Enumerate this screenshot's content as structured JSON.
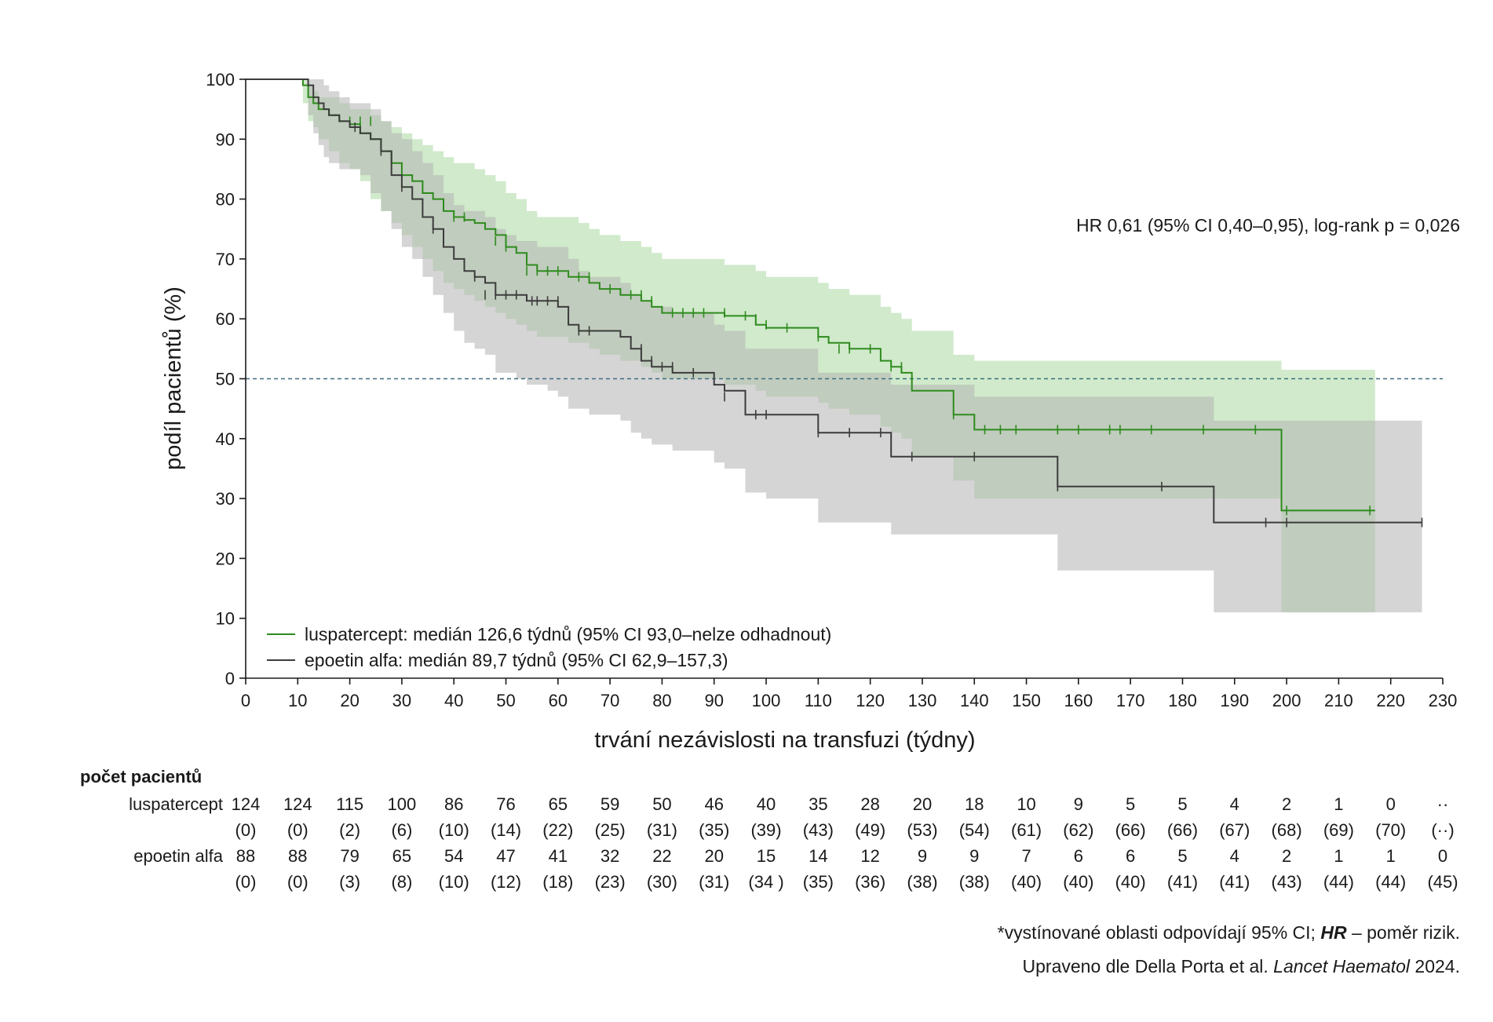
{
  "chart_data": {
    "type": "line",
    "subtype": "kaplan-meier",
    "xlabel": "trvání nezávislosti na transfuzi (týdny)",
    "ylabel": "podíl pacientů (%)",
    "xlim": [
      0,
      230
    ],
    "ylim": [
      0,
      100
    ],
    "x_ticks": [
      0,
      10,
      20,
      30,
      40,
      50,
      60,
      70,
      80,
      90,
      100,
      110,
      120,
      130,
      140,
      150,
      160,
      170,
      180,
      190,
      200,
      210,
      220,
      230
    ],
    "y_ticks": [
      0,
      10,
      20,
      30,
      40,
      50,
      60,
      70,
      80,
      90,
      100
    ],
    "reference_line": {
      "y": 50,
      "style": "dashed",
      "color": "#3d6e7e"
    },
    "hr_annotation": "HR 0,61 (95% CI 0,40–0,95), log-rank p = 0,026",
    "grid": false,
    "series": [
      {
        "name": "luspatercept",
        "legend": "luspatercept: medián 126,6 týdnů (95% CI 93,0–nelze odhadnout)",
        "color": "#2e8b1e",
        "ci_color": "#c8e6c2",
        "x": [
          0,
          11,
          12,
          13,
          14,
          16,
          18,
          20,
          22,
          24,
          26,
          28,
          30,
          32,
          34,
          36,
          38,
          40,
          42,
          44,
          46,
          48,
          50,
          52,
          54,
          56,
          58,
          60,
          62,
          64,
          66,
          68,
          72,
          76,
          78,
          80,
          86,
          90,
          92,
          96,
          98,
          100,
          104,
          110,
          112,
          116,
          122,
          124,
          126,
          128,
          136,
          140,
          146,
          156,
          166,
          186,
          199,
          217
        ],
        "y": [
          100,
          99,
          97,
          96,
          95,
          94,
          93,
          92.5,
          91,
          90,
          88,
          86,
          84,
          83,
          81,
          80,
          78,
          77,
          76.5,
          76,
          75,
          74,
          72,
          71,
          69,
          68,
          68,
          68,
          67,
          67,
          66,
          65,
          64,
          63,
          62,
          61,
          61,
          61,
          60.5,
          60.5,
          59,
          58.5,
          58.5,
          57,
          56,
          55,
          53,
          52,
          51,
          48,
          44,
          41.5,
          41.5,
          41.5,
          41.5,
          41.5,
          28,
          28
        ],
        "ci_lower": [
          100,
          96,
          93,
          92,
          90,
          88,
          86,
          85,
          83,
          80,
          78,
          76,
          74,
          72,
          70,
          68,
          66,
          65,
          64,
          63,
          62,
          61,
          60,
          59,
          58,
          57,
          57,
          57,
          56,
          56,
          55,
          54,
          53,
          52,
          51,
          50,
          50,
          50,
          49,
          49,
          48,
          47,
          47,
          46,
          45,
          44,
          42,
          41,
          40,
          37,
          33,
          30,
          30,
          30,
          30,
          30,
          11,
          11
        ],
        "ci_upper": [
          100,
          100,
          99,
          98,
          97,
          97,
          96,
          95,
          95,
          94,
          93,
          92,
          91,
          90,
          89,
          88,
          87,
          86,
          86,
          85,
          84,
          83,
          81,
          80,
          78,
          77,
          77,
          77,
          77,
          76,
          75,
          74,
          73,
          72,
          71,
          70,
          70,
          70,
          69,
          69,
          68,
          67,
          67,
          66,
          65,
          64,
          62,
          61,
          60,
          58,
          54,
          53,
          53,
          53,
          53,
          53,
          51.5,
          51.5
        ],
        "censored_x": [
          20,
          22,
          24,
          40,
          42,
          48,
          50,
          54,
          56,
          58,
          60,
          64,
          66,
          70,
          74,
          76,
          78,
          82,
          84,
          86,
          88,
          92,
          96,
          98,
          100,
          104,
          110,
          114,
          116,
          120,
          124,
          126,
          136,
          142,
          145,
          148,
          156,
          160,
          166,
          168,
          174,
          184,
          194,
          200,
          216
        ],
        "censored_y": [
          93,
          93,
          93,
          77,
          77,
          73,
          72,
          68,
          68,
          68,
          68,
          67,
          67,
          65,
          64,
          64,
          63,
          61,
          61,
          61,
          61,
          61,
          60.5,
          60,
          59,
          58.5,
          57,
          55,
          55,
          55,
          52,
          52,
          44,
          41.5,
          41.5,
          41.5,
          41.5,
          41.5,
          41.5,
          41.5,
          41.5,
          41.5,
          41.5,
          28,
          28
        ]
      },
      {
        "name": "epoetin alfa",
        "legend": "epoetin alfa: medián 89,7 týdnů (95% CI 62,9–157,3)",
        "color": "#3c3c3c",
        "ci_color": "#b3b3b3",
        "x": [
          0,
          12,
          13,
          14,
          15,
          16,
          18,
          20,
          22,
          24,
          26,
          28,
          30,
          32,
          34,
          36,
          38,
          40,
          42,
          44,
          46,
          48,
          50,
          52,
          54,
          56,
          58,
          60,
          62,
          64,
          66,
          72,
          74,
          76,
          78,
          80,
          82,
          88,
          90,
          92,
          96,
          100,
          104,
          108,
          110,
          120,
          124,
          130,
          140,
          156,
          170,
          186,
          200,
          226
        ],
        "y": [
          100,
          99,
          97,
          96,
          95,
          94,
          93,
          92,
          91,
          90,
          88,
          84,
          82,
          80,
          77,
          75,
          72,
          70,
          68,
          67,
          66,
          64,
          64,
          64,
          63,
          63,
          63,
          62,
          59,
          58,
          58,
          57,
          55,
          53,
          52,
          52,
          51,
          51,
          49,
          48,
          44,
          44,
          44,
          44,
          41,
          41,
          37,
          37,
          37,
          32,
          32,
          26,
          26,
          26
        ],
        "ci_lower": [
          100,
          94,
          91,
          89,
          87,
          86,
          85,
          85,
          84,
          81,
          78,
          75,
          72,
          70,
          67,
          64,
          61,
          58,
          56,
          55,
          54,
          51,
          51,
          50,
          49,
          49,
          48,
          47,
          45,
          45,
          44,
          43,
          41,
          40,
          39,
          39,
          38,
          38,
          36,
          35,
          31,
          30,
          30,
          30,
          26,
          26,
          24,
          24,
          24,
          18,
          18,
          11,
          11,
          11
        ],
        "ci_upper": [
          100,
          100,
          100,
          100,
          99,
          98,
          97,
          96,
          96,
          95,
          93,
          91,
          90,
          88,
          86,
          84,
          81,
          79,
          78,
          78,
          77,
          75,
          74,
          73,
          73,
          72,
          72,
          72,
          70,
          68,
          67,
          66,
          64,
          63,
          62,
          62,
          61,
          61,
          59,
          58,
          55,
          55,
          55,
          55,
          51,
          51,
          49,
          49,
          47,
          47,
          47,
          43,
          43,
          43
        ],
        "censored_x": [
          21,
          26,
          30,
          36,
          44,
          46,
          48,
          50,
          52,
          55,
          56,
          58,
          60,
          62,
          64,
          66,
          76,
          78,
          80,
          82,
          86,
          92,
          98,
          100,
          110,
          116,
          122,
          128,
          140,
          156,
          176,
          196,
          200,
          226
        ],
        "censored_y": [
          92,
          88,
          82,
          75,
          67,
          64,
          64,
          64,
          64,
          63,
          63,
          63,
          63,
          60,
          58,
          58,
          55,
          53,
          52,
          52,
          51,
          47,
          44,
          44,
          41,
          41,
          41,
          37,
          37,
          32,
          32,
          26,
          26,
          26
        ]
      }
    ],
    "risk_table": {
      "header": "počet pacientů",
      "luspatercept": {
        "label": "luspatercept",
        "counts": [
          "124",
          "124",
          "115",
          "100",
          "86",
          "76",
          "65",
          "59",
          "50",
          "46",
          "40",
          "35",
          "28",
          "20",
          "18",
          "10",
          "9",
          "5",
          "5",
          "4",
          "2",
          "1",
          "0",
          "··"
        ],
        "censored": [
          "(0)",
          "(0)",
          "(2)",
          "(6)",
          "(10)",
          "(14)",
          "(22)",
          "(25)",
          "(31)",
          "(35)",
          "(39)",
          "(43)",
          "(49)",
          "(53)",
          "(54)",
          "(61)",
          "(62)",
          "(66)",
          "(66)",
          "(67)",
          "(68)",
          "(69)",
          "(70)",
          "(··)"
        ]
      },
      "epoetin": {
        "label": "epoetin alfa",
        "counts": [
          "88",
          "88",
          "79",
          "65",
          "54",
          "47",
          "41",
          "32",
          "22",
          "20",
          "15",
          "14",
          "12",
          "9",
          "9",
          "7",
          "6",
          "6",
          "5",
          "4",
          "2",
          "1",
          "1",
          "0"
        ],
        "censored": [
          "(0)",
          "(0)",
          "(3)",
          "(8)",
          "(10)",
          "(12)",
          "(18)",
          "(23)",
          "(30)",
          "(31)",
          "(34 )",
          "(35)",
          "(36)",
          "(38)",
          "(38)",
          "(40)",
          "(40)",
          "(40)",
          "(41)",
          "(41)",
          "(43)",
          "(44)",
          "(44)",
          "(45)"
        ]
      }
    }
  },
  "footnotes": {
    "line1_prefix": "*vystínované oblasti odpovídají 95% CI; ",
    "line1_hr": "HR",
    "line1_suffix": " – poměr rizik.",
    "line2_prefix": "Upraveno dle Della Porta et al. ",
    "line2_journal": "Lancet Haematol",
    "line2_suffix": " 2024."
  }
}
